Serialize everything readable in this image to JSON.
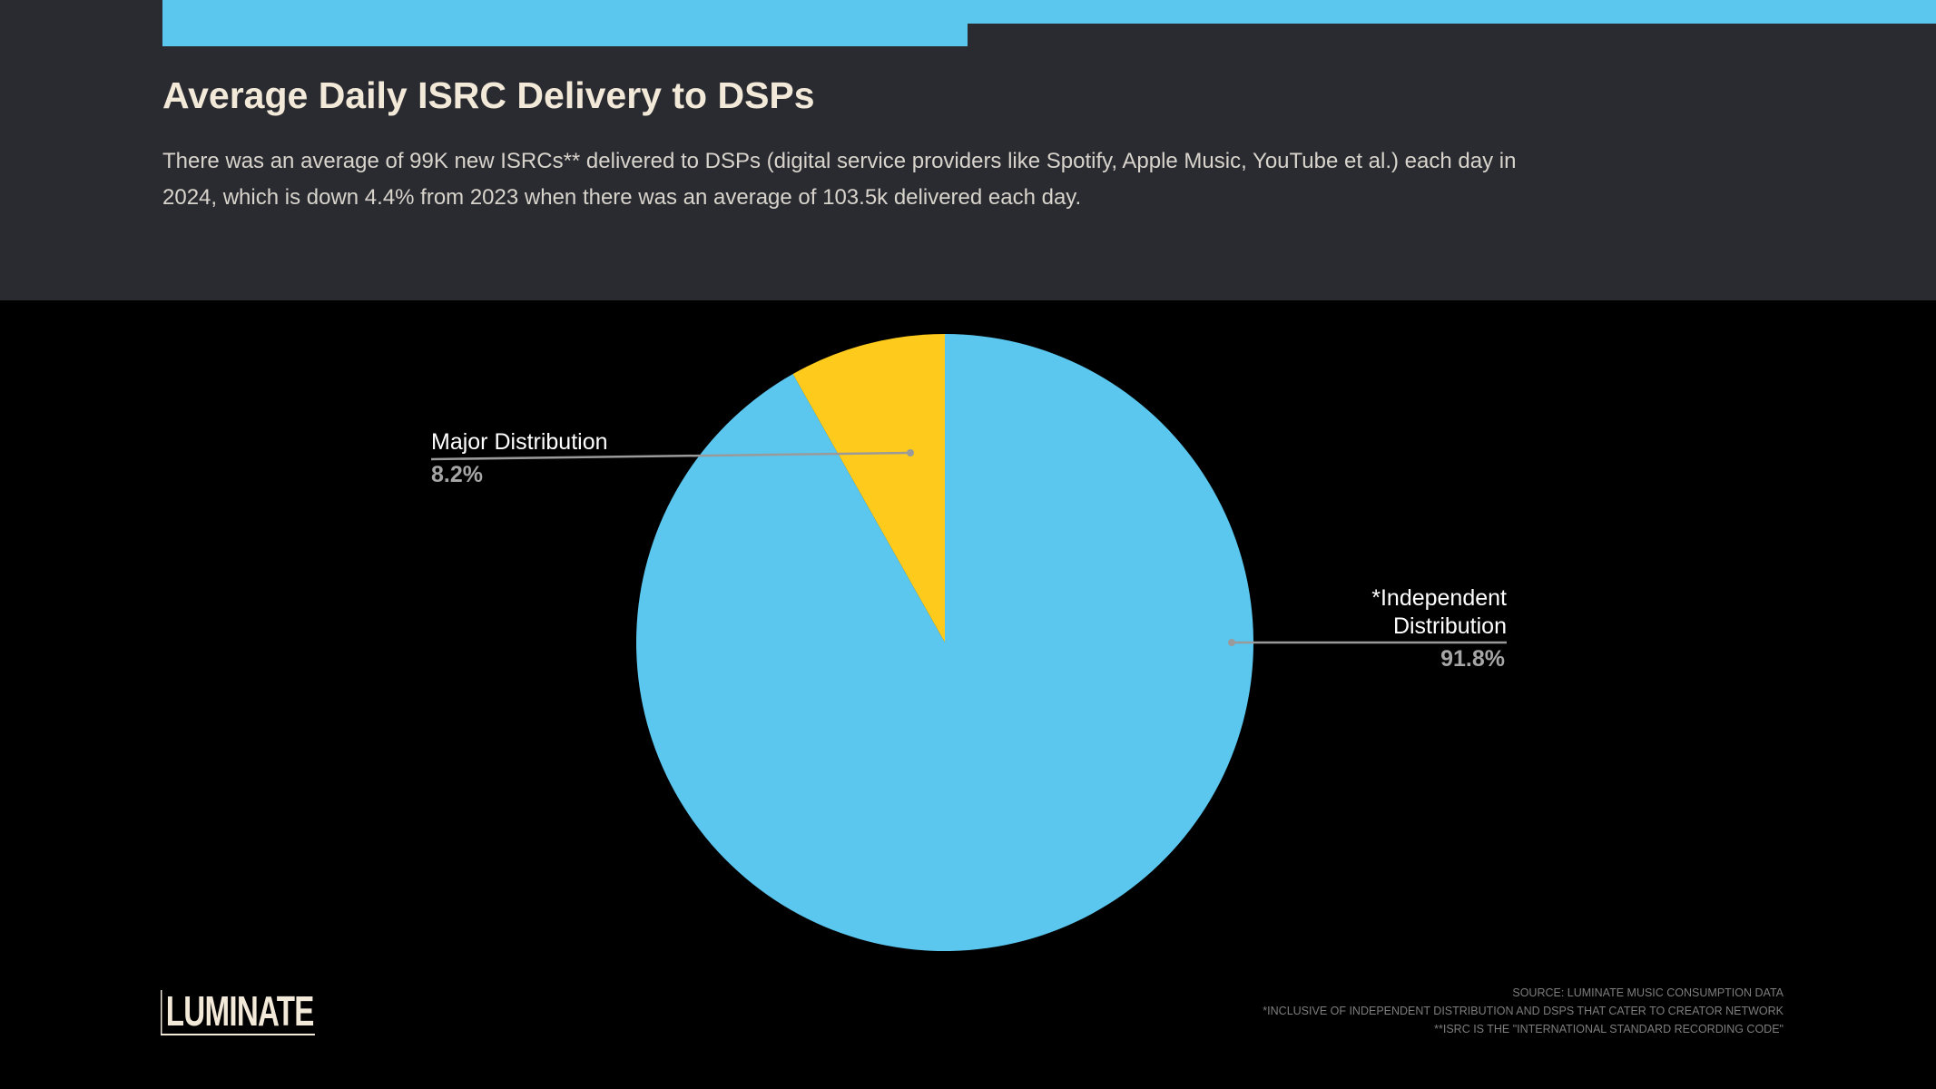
{
  "header": {
    "title": "Average Daily ISRC Delivery to DSPs",
    "subtitle": "There was an average of 99K new ISRCs** delivered to DSPs (digital service providers like Spotify, Apple Music, YouTube et al.) each day in 2024, which is down 4.4% from 2023 when there was an average of 103.5k delivered each day.",
    "accent_color": "#5bc6ee",
    "background_color": "#2a2b31"
  },
  "chart_data": {
    "type": "pie",
    "unit": "%",
    "start_angle": "12 o'clock",
    "direction": "counterclockwise",
    "slices": [
      {
        "label": "Major Distribution",
        "value": 8.2,
        "display": "8.2%",
        "color": "#fecb1c",
        "label_side": "left"
      },
      {
        "label": "*Independent Distribution",
        "value": 91.8,
        "display": "91.8%",
        "color": "#5bc6ee",
        "label_side": "right"
      }
    ]
  },
  "labels": {
    "major_name": "Major Distribution",
    "major_pct": "8.2%",
    "independent_name_line1": "*Independent",
    "independent_name_line2": "Distribution",
    "independent_pct": "91.8%"
  },
  "logo": {
    "text": "LUMINATE"
  },
  "footnotes": [
    "SOURCE: LUMINATE MUSIC CONSUMPTION DATA",
    "*INCLUSIVE OF INDEPENDENT DISTRIBUTION AND DSPS THAT CATER TO CREATOR NETWORK",
    "**ISRC IS THE \"INTERNATIONAL STANDARD RECORDING CODE\""
  ]
}
